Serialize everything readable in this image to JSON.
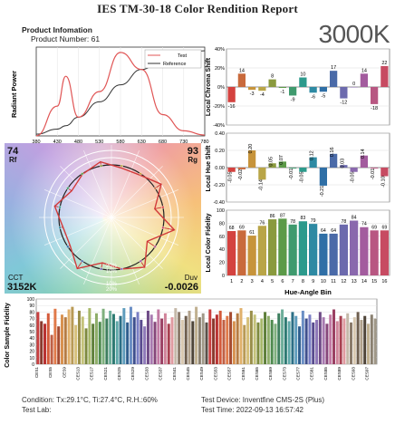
{
  "title": "IES TM-30-18 Color Rendition Report",
  "badge": "3000K",
  "product": {
    "heading": "Product Infomation",
    "number_label": "Product Number: 61"
  },
  "spd": {
    "ylabel": "Radiant Power",
    "legend": [
      "Test",
      "Reference"
    ],
    "xticks": [
      "380",
      "430",
      "480",
      "530",
      "580",
      "630",
      "680",
      "730",
      "780"
    ],
    "test_color": "#e05555",
    "ref_color": "#333333"
  },
  "cvg": {
    "rf_value": "74",
    "rf_label": "Rf",
    "rg_value": "93",
    "rg_label": "Rg",
    "cct_label": "CCT",
    "cct_value": "3152K",
    "duv_label": "Duv",
    "duv_value": "-0.0026",
    "ring_labels": [
      "20%",
      "10%",
      "10%",
      "20%"
    ]
  },
  "chroma": {
    "ylabel": "Local Chroma Shift",
    "ticks": [
      "40%",
      "20%",
      "0%",
      "-20%",
      "-40%"
    ],
    "values": [
      -16,
      14,
      -3,
      -4,
      8,
      -1,
      -9,
      10,
      -6,
      -5,
      17,
      -12,
      0,
      14,
      -18,
      22
    ],
    "labels": [
      "-16",
      "14",
      "-3",
      "-4",
      "8",
      "-1",
      "-9",
      "10",
      "-6",
      "-5",
      "17",
      "-12",
      "0",
      "14",
      "-18",
      "22"
    ]
  },
  "hue": {
    "ylabel": "Local Hue Shift",
    "ticks": [
      "0.40",
      "0.20",
      "0.00",
      "-0.20",
      "-0.40"
    ],
    "values": [
      -0.05,
      -0.02,
      0.2,
      -0.14,
      0.05,
      0.07,
      -0.01,
      -0.05,
      0.12,
      -0.21,
      0.16,
      0.03,
      -0.05,
      0.14,
      -0.01,
      -0.1
    ],
    "labels": [
      "-0.05",
      "-0.02",
      "0.20",
      "-0.14",
      "0.05",
      "0.07",
      "-0.01",
      "-0.05",
      "0.12",
      "-0.21",
      "0.16",
      "0.03",
      "-0.05",
      "0.14",
      "-0.01",
      "-0.10"
    ]
  },
  "fidelity": {
    "ylabel": "Local Color Fidelity",
    "xlabel": "Hue-Angle Bin",
    "ticks": [
      "100",
      "80",
      "60",
      "40",
      "20",
      "0"
    ],
    "bins": [
      "1",
      "2",
      "3",
      "4",
      "5",
      "6",
      "7",
      "8",
      "9",
      "10",
      "11",
      "12",
      "13",
      "14",
      "15",
      "16"
    ],
    "values": [
      68,
      69,
      61,
      76,
      86,
      87,
      78,
      83,
      79,
      64,
      64,
      78,
      84,
      74,
      69,
      69
    ],
    "labels": [
      "68",
      "69",
      "61",
      "76",
      "86",
      "87",
      "78",
      "83",
      "79",
      "64",
      "64",
      "78",
      "84",
      "74",
      "69",
      "69"
    ]
  },
  "bin_colors": [
    "#d4423f",
    "#c96a3c",
    "#c7943b",
    "#b9a547",
    "#8a9a3e",
    "#5c9a48",
    "#3f9a6e",
    "#2c9a8c",
    "#2e8aa3",
    "#2f6fa6",
    "#4a6aa8",
    "#6c6aad",
    "#8a68ad",
    "#a35c9e",
    "#b85782",
    "#c74b62"
  ],
  "samples": {
    "ylabel": "Color Sample Fidelity",
    "ticks": [
      "100",
      "90",
      "80",
      "70",
      "60",
      "50",
      "40",
      "30",
      "20",
      "10",
      "0"
    ],
    "xlabels": [
      "CES1",
      "CES5",
      "CES9",
      "CES13",
      "CES17",
      "CES21",
      "CES25",
      "CES29",
      "CES33",
      "CES37",
      "CES41",
      "CES45",
      "CES49",
      "CES53",
      "CES57",
      "CES61",
      "CES65",
      "CES69",
      "CES73",
      "CES77",
      "CES81",
      "CES85",
      "CES89",
      "CES93",
      "CES97"
    ]
  },
  "chart_data": [
    {
      "type": "line",
      "ylabel": "Radiant Power",
      "x": [
        380,
        430,
        450,
        480,
        530,
        580,
        630,
        680,
        730,
        780
      ],
      "series": [
        {
          "name": "Test",
          "values": [
            0.0,
            0.35,
            0.7,
            0.22,
            0.52,
            0.98,
            0.78,
            0.25,
            0.06,
            0.01
          ]
        },
        {
          "name": "Reference",
          "values": [
            0.02,
            0.08,
            0.12,
            0.22,
            0.4,
            0.6,
            0.78,
            0.9,
            0.97,
            1.0
          ]
        }
      ]
    },
    {
      "type": "bar",
      "ylabel": "Local Chroma Shift",
      "categories": [
        "1",
        "2",
        "3",
        "4",
        "5",
        "6",
        "7",
        "8",
        "9",
        "10",
        "11",
        "12",
        "13",
        "14",
        "15",
        "16"
      ],
      "values": [
        -16,
        14,
        -3,
        -4,
        8,
        -1,
        -9,
        10,
        -6,
        -5,
        17,
        -12,
        0,
        14,
        -18,
        22
      ],
      "ylim": [
        -40,
        40
      ]
    },
    {
      "type": "bar",
      "ylabel": "Local Hue Shift",
      "categories": [
        "1",
        "2",
        "3",
        "4",
        "5",
        "6",
        "7",
        "8",
        "9",
        "10",
        "11",
        "12",
        "13",
        "14",
        "15",
        "16"
      ],
      "values": [
        -0.05,
        -0.02,
        0.2,
        -0.14,
        0.05,
        0.07,
        -0.01,
        -0.05,
        0.12,
        -0.21,
        0.16,
        0.03,
        -0.05,
        0.14,
        -0.01,
        -0.1
      ],
      "ylim": [
        -0.4,
        0.4
      ]
    },
    {
      "type": "bar",
      "ylabel": "Local Color Fidelity",
      "xlabel": "Hue-Angle Bin",
      "categories": [
        "1",
        "2",
        "3",
        "4",
        "5",
        "6",
        "7",
        "8",
        "9",
        "10",
        "11",
        "12",
        "13",
        "14",
        "15",
        "16"
      ],
      "values": [
        68,
        69,
        61,
        76,
        86,
        87,
        78,
        83,
        79,
        64,
        64,
        78,
        84,
        74,
        69,
        69
      ],
      "ylim": [
        0,
        100
      ]
    },
    {
      "type": "bar",
      "ylabel": "Color Sample Fidelity",
      "categories_every4": [
        "CES1",
        "CES5",
        "CES9",
        "CES13",
        "CES17",
        "CES21",
        "CES25",
        "CES29",
        "CES33",
        "CES37",
        "CES41",
        "CES45",
        "CES49",
        "CES53",
        "CES57",
        "CES61",
        "CES65",
        "CES69",
        "CES73",
        "CES77",
        "CES81",
        "CES85",
        "CES89",
        "CES93",
        "CES97"
      ],
      "values": [
        80,
        66,
        62,
        78,
        45,
        85,
        58,
        76,
        72,
        84,
        88,
        60,
        82,
        73,
        55,
        86,
        62,
        78,
        65,
        85,
        70,
        82,
        77,
        66,
        74,
        86,
        64,
        88,
        72,
        80,
        68,
        58,
        82,
        76,
        65,
        84,
        70,
        78,
        62,
        72,
        86,
        80,
        68,
        74,
        82,
        66,
        88,
        72,
        78,
        64,
        84,
        70,
        76,
        82,
        68,
        74,
        80,
        66,
        78,
        86,
        60,
        72,
        82,
        76,
        64,
        70,
        80,
        74,
        68,
        62,
        78,
        84,
        72,
        66,
        80,
        74,
        58,
        82,
        70,
        76,
        64,
        68,
        80,
        72,
        62,
        76,
        84,
        66,
        74,
        70,
        78,
        64,
        72,
        80,
        68,
        74,
        62,
        76,
        70
      ],
      "ylim": [
        0,
        100
      ]
    }
  ],
  "sample_colors": [
    "#c94040",
    "#8a3a2e",
    "#b83232",
    "#d45a3a",
    "#c06045",
    "#e07a4a",
    "#a54a30",
    "#d8914f",
    "#b67c43",
    "#e0b06a",
    "#b99a55",
    "#d6c07a",
    "#9a8f4a",
    "#c4c27a",
    "#7e8a3e",
    "#a7b86a",
    "#5e7f3a",
    "#8fae6a",
    "#4e8a4e",
    "#7fb07e",
    "#3d7e5e",
    "#6eae9a",
    "#2e7a72",
    "#5ea8a8",
    "#2b6f86",
    "#5e9cbc",
    "#2f5e8e",
    "#6a8ec4",
    "#3e4f8e",
    "#7a7ec4",
    "#574a8e",
    "#8e78b8",
    "#6e4a86",
    "#a87ab0",
    "#86467a",
    "#c27aa4",
    "#9a3f62",
    "#d0849a",
    "#a84050",
    "#e09aa0",
    "#c4b8a8",
    "#8a7a6a",
    "#d8c8b0",
    "#6e5e4e",
    "#b0a08a",
    "#4e4438",
    "#c0b090",
    "#8a8070",
    "#a09888",
    "#5a5048"
  ],
  "footer": {
    "condition": "Condition: Tx:29.1°C, Ti:27.4°C, R.H.:60%",
    "lab": "Test Lab:",
    "device": "Test Device: Inventfine CMS-2S (Plus)",
    "time": "Test Time: 2022-09-13 16:57:42"
  }
}
